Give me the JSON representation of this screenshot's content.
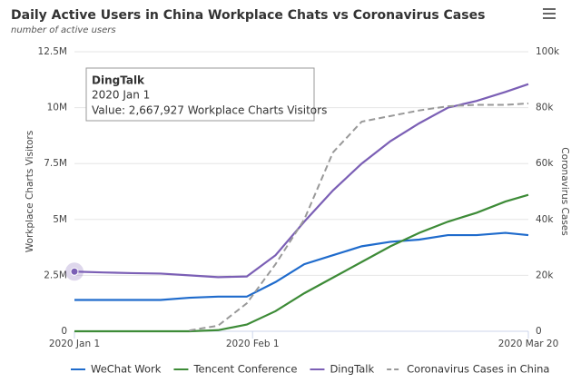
{
  "chart_data": {
    "type": "line",
    "title": "Daily Active Users in China Workplace Chats vs Coronavirus Cases",
    "subtitle": "number of active users",
    "y_label": "Workplace Charts Visitors",
    "y2_label": "Coronavirus Cases",
    "x": [
      "2020-01-01",
      "2020-01-06",
      "2020-01-11",
      "2020-01-16",
      "2020-01-21",
      "2020-01-26",
      "2020-01-31",
      "2020-02-05",
      "2020-02-10",
      "2020-02-15",
      "2020-02-20",
      "2020-02-25",
      "2020-03-01",
      "2020-03-06",
      "2020-03-11",
      "2020-03-16",
      "2020-03-20"
    ],
    "xlim": [
      "2020-01-01",
      "2020-03-20"
    ],
    "xticks": [
      {
        "value": "2020-01-01",
        "label": "2020 Jan 1"
      },
      {
        "value": "2020-02-01",
        "label": "2020 Feb 1"
      },
      {
        "value": "2020-03-20",
        "label": "2020 Mar 20"
      }
    ],
    "ylim": [
      0,
      12500000
    ],
    "yticks": [
      0,
      {
        "value": 2500000,
        "label": "2.5M"
      },
      {
        "value": 5000000,
        "label": "5M"
      },
      {
        "value": 7500000,
        "label": "7.5M"
      },
      {
        "value": 10000000,
        "label": "10M"
      },
      {
        "value": 12500000,
        "label": "12.5M"
      }
    ],
    "y2lim": [
      0,
      100000
    ],
    "y2ticks": [
      0,
      {
        "value": 20000,
        "label": "20k"
      },
      {
        "value": 40000,
        "label": "40k"
      },
      {
        "value": 60000,
        "label": "60k"
      },
      {
        "value": 80000,
        "label": "80k"
      },
      {
        "value": 100000,
        "label": "100k"
      }
    ],
    "grid": true,
    "series": [
      {
        "name": "WeChat Work",
        "color": "#1f6bcc",
        "values": [
          1400000,
          1400000,
          1400000,
          1400000,
          1500000,
          1550000,
          1550000,
          2200000,
          3000000,
          3400000,
          3800000,
          4000000,
          4100000,
          4300000,
          4300000,
          4400000,
          4300000
        ]
      },
      {
        "name": "Tencent Conference",
        "color": "#3d8b37",
        "values": [
          0,
          0,
          0,
          0,
          0,
          50000,
          300000,
          900000,
          1700000,
          2400000,
          3100000,
          3800000,
          4400000,
          4900000,
          5300000,
          5800000,
          6100000
        ]
      },
      {
        "name": "DingTalk",
        "color": "#7b5fb5",
        "values": [
          2667927,
          2630000,
          2600000,
          2580000,
          2500000,
          2420000,
          2450000,
          3400000,
          4900000,
          6300000,
          7500000,
          8500000,
          9300000,
          10000000,
          10300000,
          10700000,
          11050000
        ]
      },
      {
        "name": "Coronavirus Cases in China",
        "color": "#999999",
        "axis": "y2",
        "dashed": true,
        "values": [
          null,
          null,
          null,
          null,
          300,
          2000,
          10000,
          24000,
          40000,
          64000,
          75000,
          77000,
          79000,
          80500,
          81000,
          81000,
          81500
        ]
      }
    ],
    "tooltip": {
      "title": "DingTalk",
      "date": "2020 Jan 1",
      "text": "Value: 2,667,927 Workplace Charts Visitors"
    }
  }
}
